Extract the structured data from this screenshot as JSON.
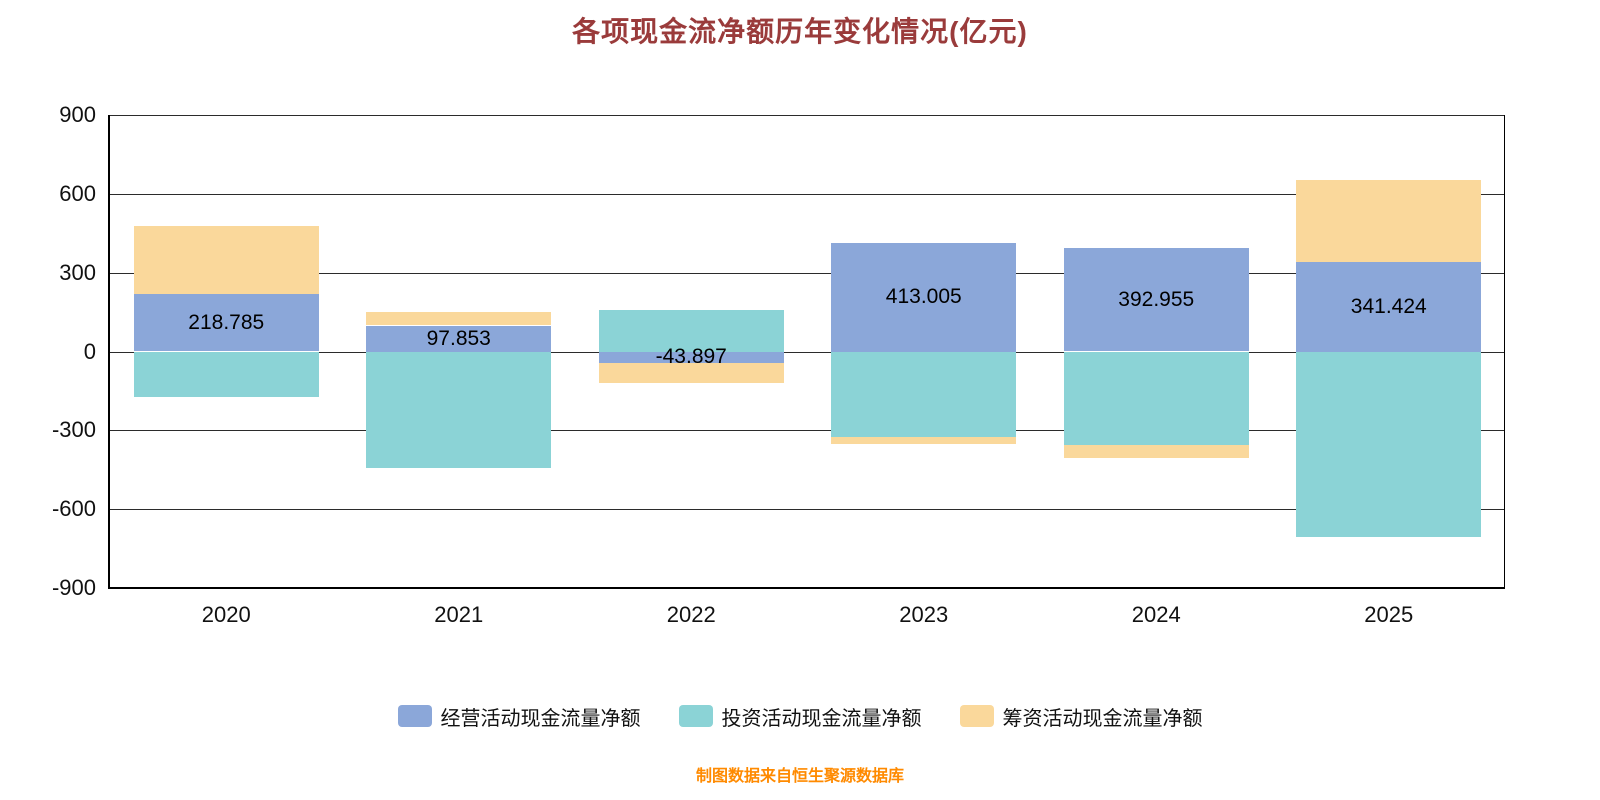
{
  "title": "各项现金流净额历年变化情况(亿元)",
  "footer": "制图数据来自恒生聚源数据库",
  "colors": {
    "title": "#9a3b3b",
    "footer": "#ff8a00",
    "axis": "#000000",
    "gridline": "#2b2b2b",
    "operating": "#8ba7d9",
    "investing": "#8bd3d6",
    "financing": "#fad89b"
  },
  "chart_data": {
    "type": "bar",
    "stacked": true,
    "title": "各项现金流净额历年变化情况(亿元)",
    "xlabel": "",
    "ylabel": "",
    "categories": [
      "2020",
      "2021",
      "2022",
      "2023",
      "2024",
      "2025"
    ],
    "series": [
      {
        "name": "经营活动现金流量净额",
        "color": "#8ba7d9",
        "values": [
          218.785,
          97.853,
          -43.897,
          413.005,
          392.955,
          341.424
        ]
      },
      {
        "name": "投资活动现金流量净额",
        "color": "#8bd3d6",
        "values": [
          -172,
          -442,
          158,
          -325,
          -356,
          -705
        ]
      },
      {
        "name": "筹资活动现金流量净额",
        "color": "#fad89b",
        "values": [
          259,
          51,
          -75,
          -27,
          -49,
          311
        ]
      }
    ],
    "data_labels": [
      "218.785",
      "97.853",
      "-43.897",
      "413.005",
      "392.955",
      "341.424"
    ],
    "ylim": [
      -900,
      900
    ],
    "yticks": [
      900,
      600,
      300,
      0,
      -300,
      -600,
      -900
    ],
    "grid": true,
    "legend_position": "bottom"
  }
}
